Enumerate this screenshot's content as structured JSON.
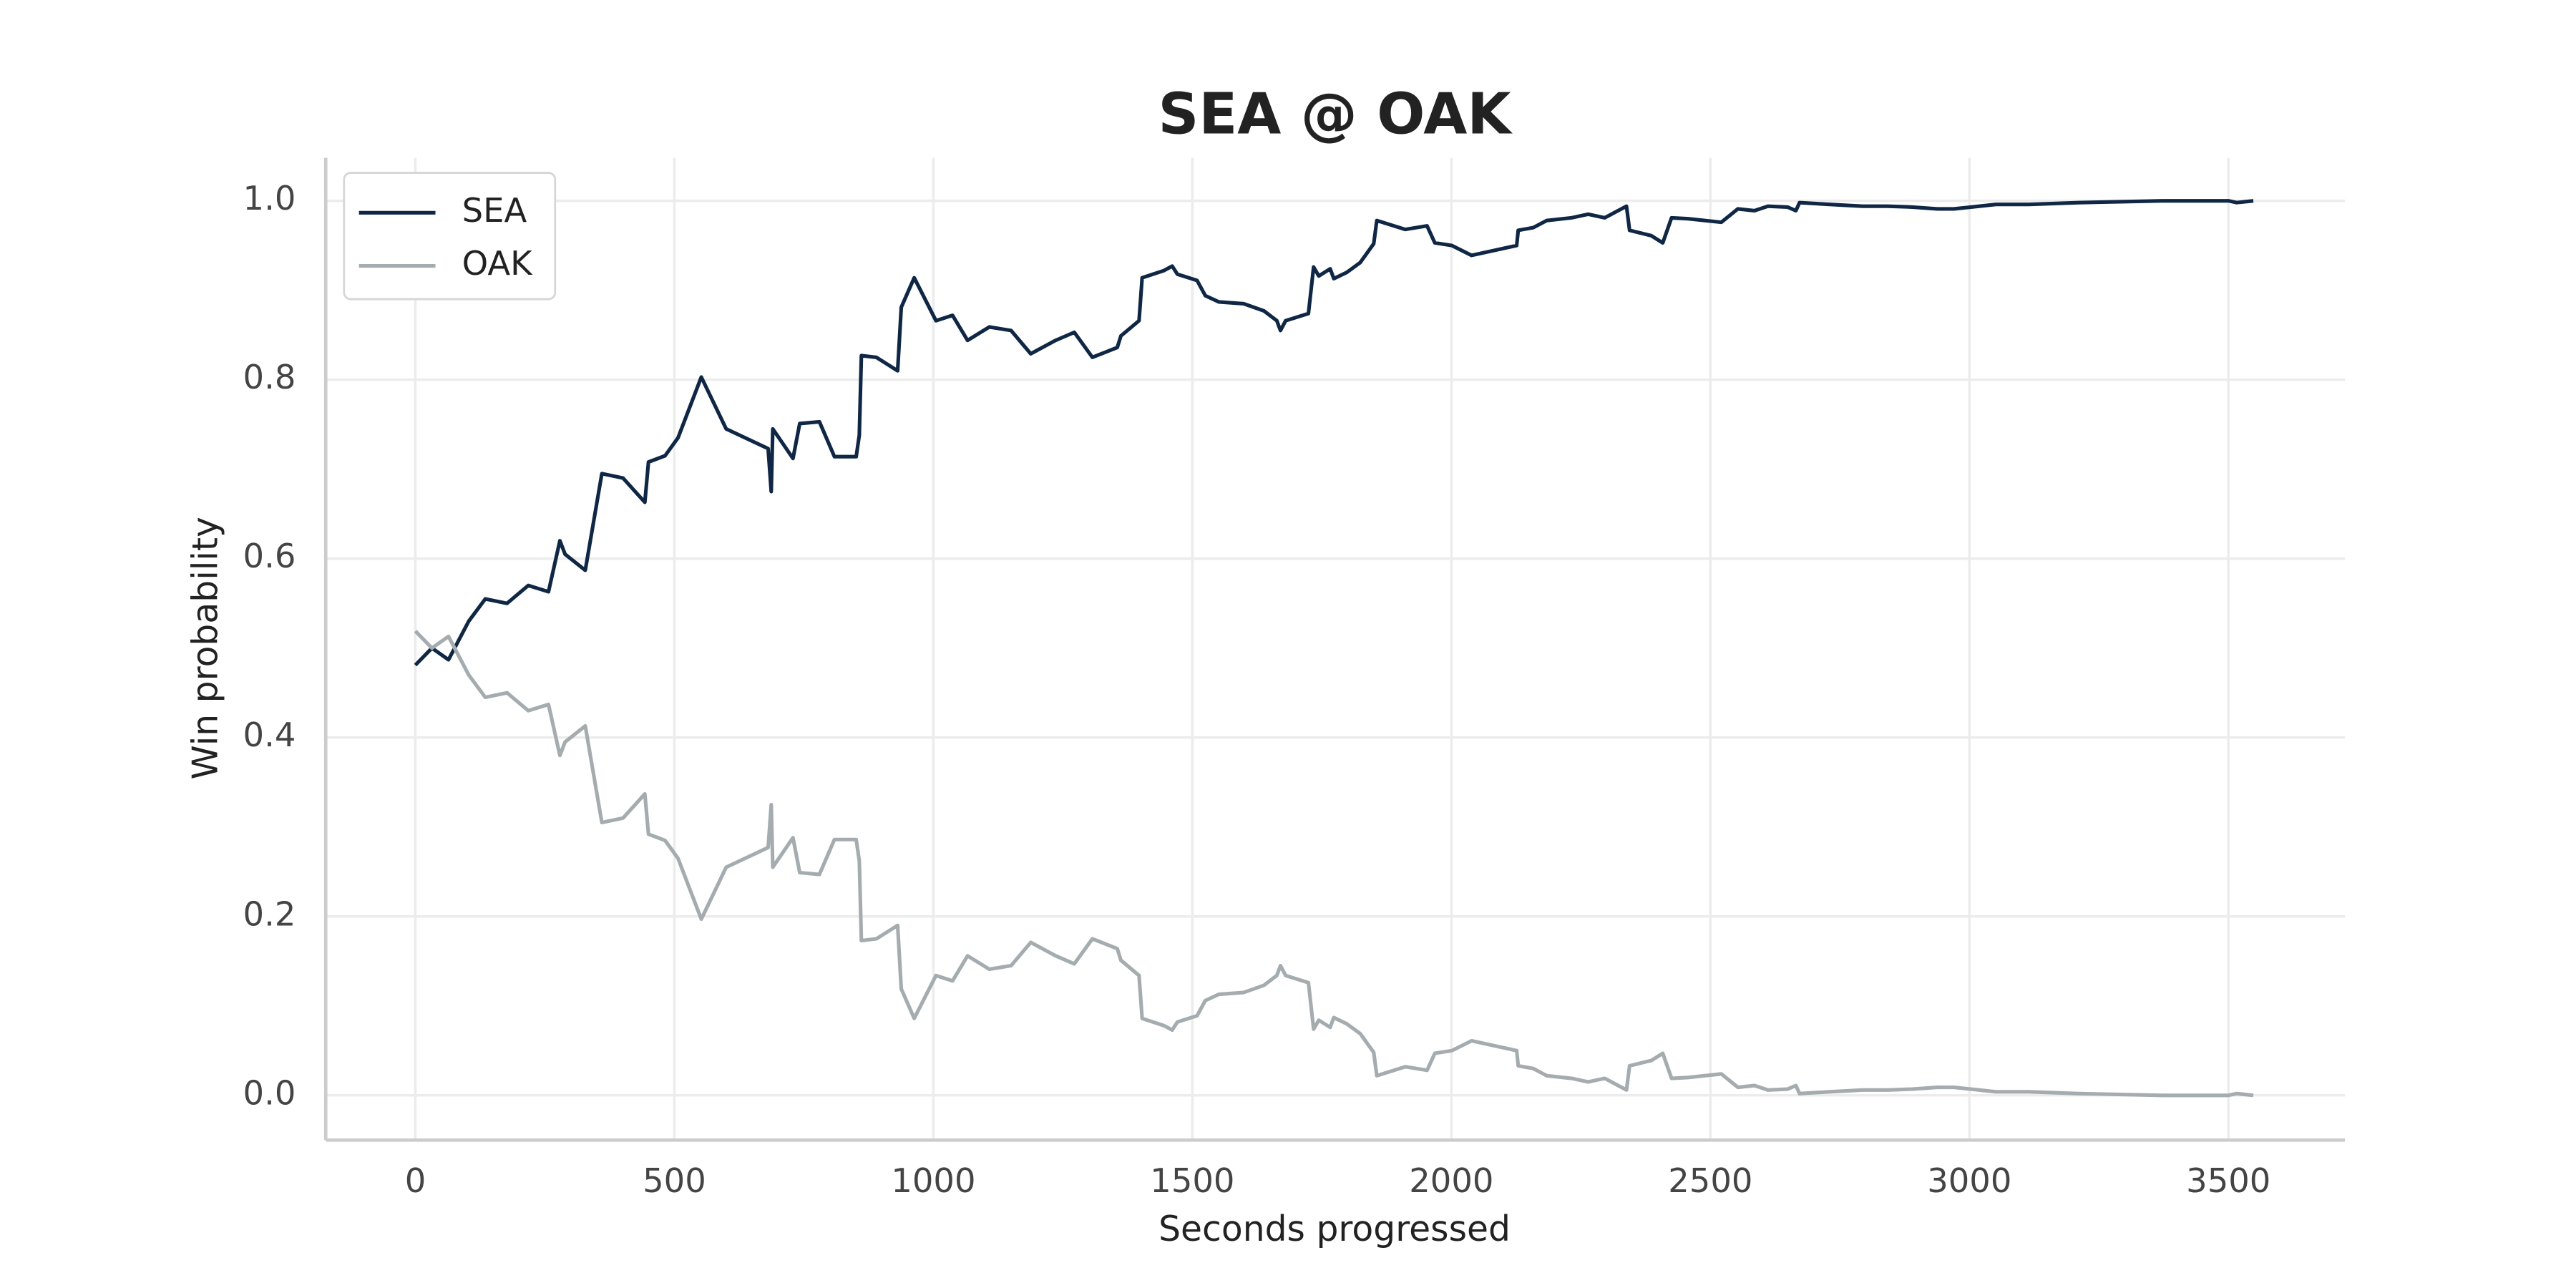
{
  "chart_data": {
    "type": "line",
    "title": "SEA @ OAK",
    "x_label": "Seconds progressed",
    "y_label": "Win probability",
    "x": [
      0,
      32,
      64,
      103,
      135,
      177,
      218,
      257,
      279,
      289,
      328,
      360,
      401,
      443,
      450,
      482,
      507,
      552,
      600,
      681,
      687,
      690,
      729,
      742,
      780,
      809,
      851,
      857,
      861,
      890,
      931,
      938,
      963,
      1005,
      1037,
      1066,
      1108,
      1150,
      1188,
      1236,
      1272,
      1307,
      1355,
      1362,
      1397,
      1403,
      1445,
      1461,
      1471,
      1509,
      1525,
      1551,
      1599,
      1638,
      1663,
      1670,
      1680,
      1724,
      1734,
      1744,
      1766,
      1773,
      1798,
      1824,
      1850,
      1856,
      1911,
      1953,
      1968,
      2001,
      2039,
      2126,
      2129,
      2158,
      2184,
      2232,
      2264,
      2296,
      2338,
      2344,
      2386,
      2408,
      2425,
      2457,
      2521,
      2553,
      2585,
      2611,
      2649,
      2665,
      2672,
      2730,
      2794,
      2842,
      2890,
      2938,
      2970,
      3019,
      3051,
      3115,
      3211,
      3372,
      3500,
      3516,
      3548
    ],
    "series": [
      {
        "name": "SEA",
        "color": "#0f2744",
        "values": [
          0.481,
          0.5,
          0.487,
          0.53,
          0.555,
          0.55,
          0.57,
          0.563,
          0.62,
          0.605,
          0.587,
          0.695,
          0.69,
          0.663,
          0.708,
          0.715,
          0.735,
          0.803,
          0.745,
          0.723,
          0.675,
          0.745,
          0.712,
          0.751,
          0.753,
          0.714,
          0.714,
          0.738,
          0.827,
          0.825,
          0.81,
          0.881,
          0.914,
          0.866,
          0.872,
          0.844,
          0.859,
          0.855,
          0.829,
          0.844,
          0.853,
          0.825,
          0.836,
          0.849,
          0.866,
          0.914,
          0.922,
          0.927,
          0.918,
          0.911,
          0.894,
          0.887,
          0.885,
          0.877,
          0.866,
          0.855,
          0.866,
          0.874,
          0.926,
          0.916,
          0.924,
          0.913,
          0.92,
          0.931,
          0.952,
          0.978,
          0.968,
          0.972,
          0.953,
          0.95,
          0.939,
          0.95,
          0.967,
          0.97,
          0.978,
          0.981,
          0.985,
          0.981,
          0.994,
          0.967,
          0.961,
          0.953,
          0.981,
          0.98,
          0.976,
          0.991,
          0.989,
          0.994,
          0.993,
          0.989,
          0.998,
          0.996,
          0.994,
          0.994,
          0.993,
          0.991,
          0.991,
          0.994,
          0.996,
          0.996,
          0.998,
          1.0,
          1.0,
          0.998,
          1.0
        ]
      },
      {
        "name": "OAK",
        "color": "#a5acaf",
        "values": [
          0.519,
          0.5,
          0.513,
          0.47,
          0.445,
          0.45,
          0.43,
          0.437,
          0.38,
          0.395,
          0.413,
          0.305,
          0.31,
          0.337,
          0.292,
          0.285,
          0.265,
          0.197,
          0.255,
          0.277,
          0.325,
          0.255,
          0.288,
          0.249,
          0.247,
          0.286,
          0.286,
          0.262,
          0.173,
          0.175,
          0.19,
          0.119,
          0.086,
          0.134,
          0.128,
          0.156,
          0.141,
          0.145,
          0.171,
          0.156,
          0.147,
          0.175,
          0.164,
          0.151,
          0.134,
          0.086,
          0.078,
          0.073,
          0.082,
          0.089,
          0.106,
          0.113,
          0.115,
          0.123,
          0.134,
          0.145,
          0.134,
          0.126,
          0.074,
          0.084,
          0.076,
          0.087,
          0.08,
          0.069,
          0.048,
          0.022,
          0.032,
          0.028,
          0.047,
          0.05,
          0.061,
          0.05,
          0.033,
          0.03,
          0.022,
          0.019,
          0.015,
          0.019,
          0.006,
          0.033,
          0.039,
          0.047,
          0.019,
          0.02,
          0.024,
          0.009,
          0.011,
          0.006,
          0.007,
          0.011,
          0.002,
          0.004,
          0.006,
          0.006,
          0.007,
          0.009,
          0.009,
          0.006,
          0.004,
          0.004,
          0.002,
          0,
          0,
          0.002,
          0
        ]
      }
    ],
    "xlim": [
      -173,
      3725
    ],
    "ylim": [
      -0.05,
      1.048
    ],
    "xticks": [
      0,
      500,
      1000,
      1500,
      2000,
      2500,
      3000,
      3500
    ],
    "yticks": [
      {
        "value": 0,
        "label": "0.0"
      },
      0.2,
      0.4,
      0.6,
      0.8,
      {
        "value": 1,
        "label": "1.0"
      }
    ],
    "grid": true,
    "legend": "upper left"
  }
}
